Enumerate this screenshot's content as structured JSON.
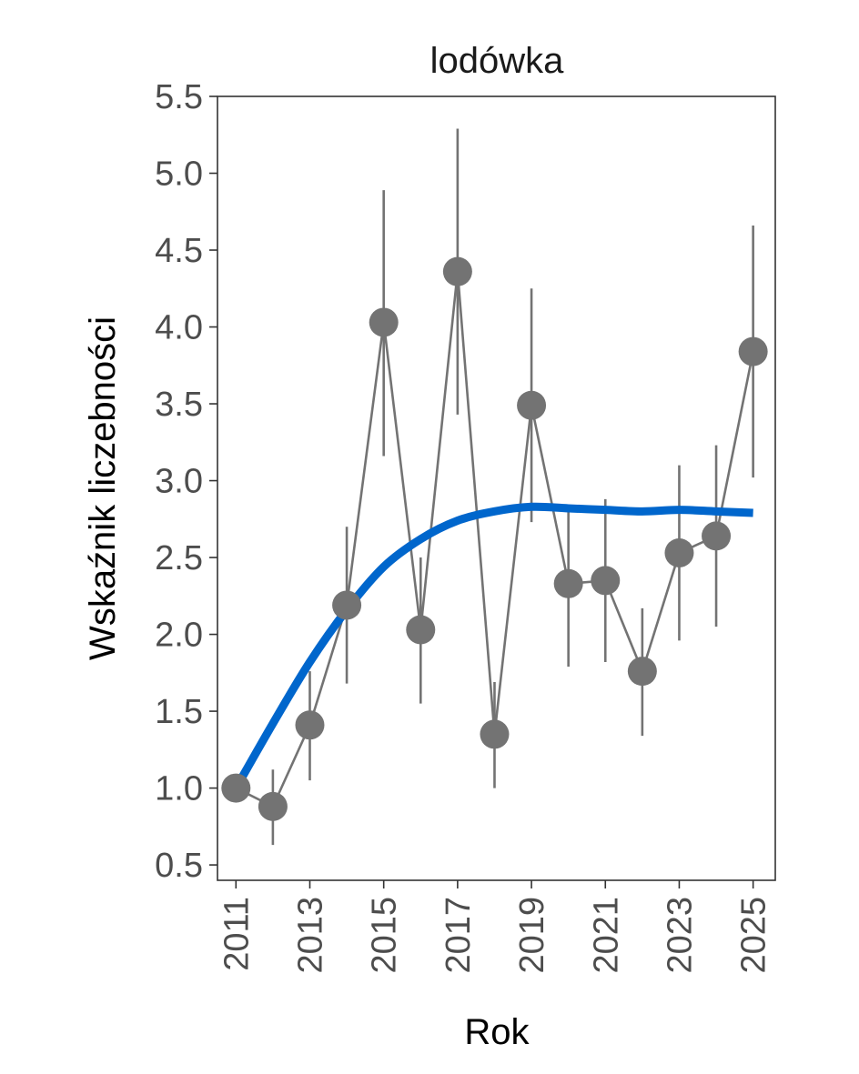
{
  "chart_data": {
    "type": "line",
    "title": "lodówka",
    "xlabel": "Rok",
    "ylabel": "Wskaźnik liczebności",
    "xlim": [
      2010.5,
      2025.6
    ],
    "ylim": [
      0.4,
      5.5
    ],
    "x_ticks": [
      2011,
      2013,
      2015,
      2017,
      2019,
      2021,
      2023,
      2025
    ],
    "y_ticks": [
      0.5,
      1.0,
      1.5,
      2.0,
      2.5,
      3.0,
      3.5,
      4.0,
      4.5,
      5.0,
      5.5
    ],
    "grid": false,
    "series": [
      {
        "kind": "observed",
        "color": "#737373",
        "x": [
          2011,
          2012,
          2013,
          2014,
          2015,
          2016,
          2017,
          2018,
          2019,
          2020,
          2021,
          2022,
          2023,
          2024,
          2025
        ],
        "values": [
          1.0,
          0.88,
          1.41,
          2.19,
          4.03,
          2.03,
          4.36,
          1.35,
          3.49,
          2.33,
          2.35,
          1.76,
          2.53,
          2.64,
          3.84
        ],
        "lower": [
          1.0,
          0.63,
          1.05,
          1.68,
          3.16,
          1.55,
          3.43,
          1.0,
          2.73,
          1.79,
          1.82,
          1.34,
          1.96,
          2.05,
          3.02
        ],
        "upper": [
          1.0,
          1.12,
          1.76,
          2.7,
          4.89,
          2.5,
          5.29,
          1.69,
          4.25,
          2.81,
          2.88,
          2.17,
          3.1,
          3.23,
          4.66
        ]
      },
      {
        "kind": "trend",
        "color": "#0066cc",
        "x": [
          2011,
          2012,
          2013,
          2014,
          2015,
          2016,
          2017,
          2018,
          2019,
          2020,
          2021,
          2022,
          2023,
          2024,
          2025
        ],
        "values": [
          1.0,
          1.42,
          1.82,
          2.16,
          2.44,
          2.62,
          2.74,
          2.8,
          2.83,
          2.82,
          2.81,
          2.8,
          2.81,
          2.8,
          2.79
        ]
      }
    ]
  }
}
